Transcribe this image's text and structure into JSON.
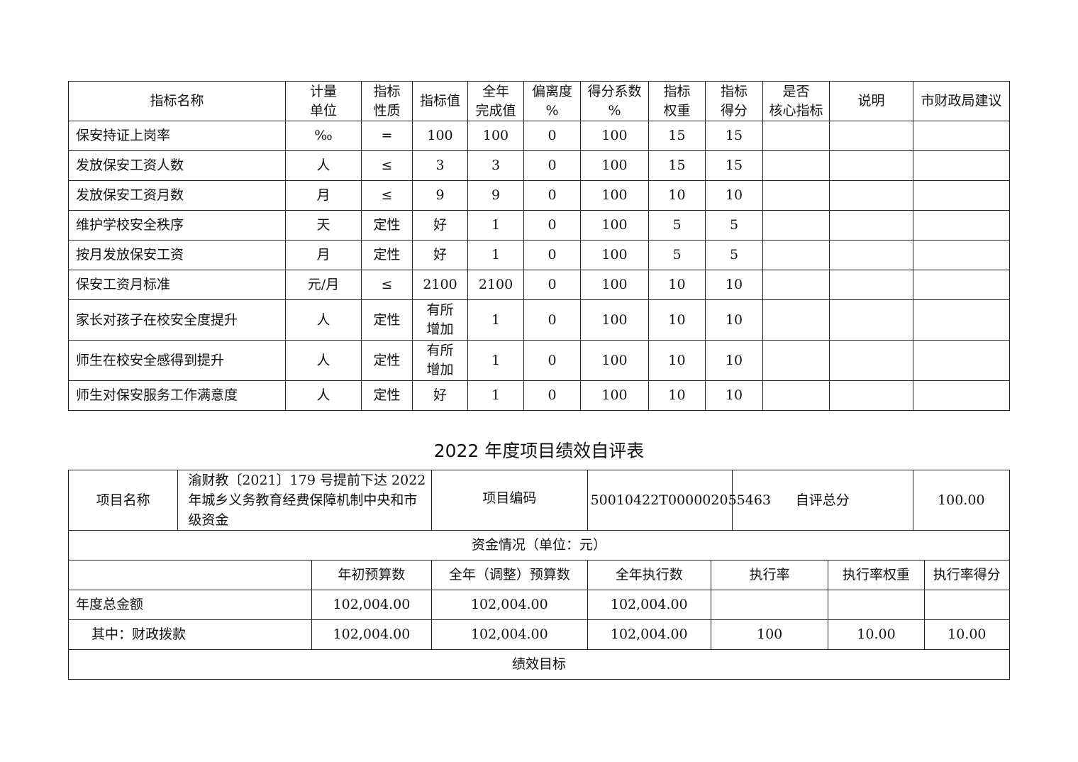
{
  "indicator_table": {
    "headers": [
      "指标名称",
      "计量\n单位",
      "指标\n性质",
      "指标值",
      "全年\n完成值",
      "偏离度\n%",
      "得分系数\n%",
      "指标\n权重",
      "指标\n得分",
      "是否\n核心指标",
      "说明",
      "市财政局建议"
    ],
    "rows": [
      [
        "保安持证上岗率",
        "‰",
        "=",
        "100",
        "100",
        "0",
        "100",
        "15",
        "15",
        "",
        "",
        ""
      ],
      [
        "发放保安工资人数",
        "人",
        "≤",
        "3",
        "3",
        "0",
        "100",
        "15",
        "15",
        "",
        "",
        ""
      ],
      [
        "发放保安工资月数",
        "月",
        "≤",
        "9",
        "9",
        "0",
        "100",
        "10",
        "10",
        "",
        "",
        ""
      ],
      [
        "维护学校安全秩序",
        "天",
        "定性",
        "好",
        "1",
        "0",
        "100",
        "5",
        "5",
        "",
        "",
        ""
      ],
      [
        "按月发放保安工资",
        "月",
        "定性",
        "好",
        "1",
        "0",
        "100",
        "5",
        "5",
        "",
        "",
        ""
      ],
      [
        "保安工资月标准",
        "元/月",
        "≤",
        "2100",
        "2100",
        "0",
        "100",
        "10",
        "10",
        "",
        "",
        ""
      ],
      [
        "家长对孩子在校安全度提升",
        "人",
        "定性",
        "有所\n增加",
        "1",
        "0",
        "100",
        "10",
        "10",
        "",
        "",
        ""
      ],
      [
        "师生在校安全感得到提升",
        "人",
        "定性",
        "有所\n增加",
        "1",
        "0",
        "100",
        "10",
        "10",
        "",
        "",
        ""
      ],
      [
        "师生对保安服务工作满意度",
        "人",
        "定性",
        "好",
        "1",
        "0",
        "100",
        "10",
        "10",
        "",
        "",
        ""
      ]
    ]
  },
  "self_eval": {
    "title": "2022 年度项目绩效自评表",
    "project_name_label": "项目名称",
    "project_name": "渝财教〔2021〕179 号提前下达 2022 年城乡义务教育经费保障机制中央和市级资金",
    "project_code_label": "项目编码",
    "project_code": "50010422T000002055463",
    "score_label": "自评总分",
    "score": "100.00",
    "funds_header": "资金情况（单位：元）",
    "fund_columns": [
      "",
      "年初预算数",
      "全年（调整）预算数",
      "全年执行数",
      "执行率",
      "执行率权重",
      "执行率得分"
    ],
    "fund_rows": [
      [
        "年度总金额",
        "102,004.00",
        "102,004.00",
        "102,004.00",
        "",
        "",
        ""
      ],
      [
        "其中：财政拨款",
        "102,004.00",
        "102,004.00",
        "102,004.00",
        "100",
        "10.00",
        "10.00"
      ]
    ],
    "goals_label": "绩效目标"
  }
}
